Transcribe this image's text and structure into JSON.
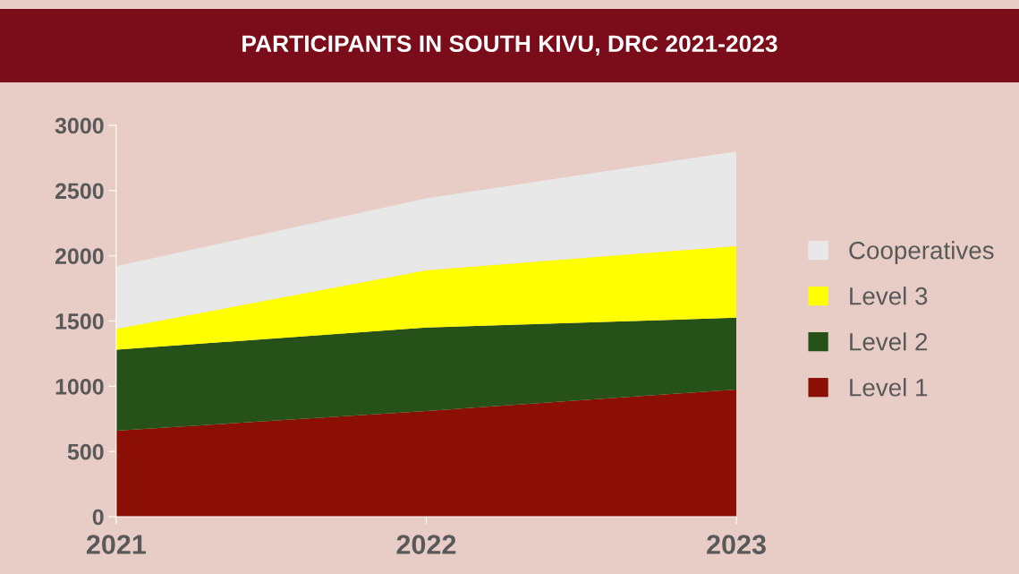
{
  "chart_data": {
    "type": "area",
    "title": "PARTICIPANTS IN SOUTH KIVU, DRC 2021-2023",
    "stacked": true,
    "x": [
      2021,
      2022,
      2023
    ],
    "xlim": [
      2021,
      2023
    ],
    "xticks": [
      2021,
      2022,
      2023
    ],
    "ylim": [
      0,
      3000
    ],
    "yticks": [
      0,
      500,
      1000,
      1500,
      2000,
      2500,
      3000
    ],
    "grid": false,
    "legend": "right",
    "series": [
      {
        "name": "Level 1",
        "color": "#8b0f04",
        "values": [
          660,
          810,
          975
        ]
      },
      {
        "name": "Level 2",
        "color": "#265118",
        "values": [
          620,
          640,
          550
        ]
      },
      {
        "name": "Level 3",
        "color": "#ffff00",
        "values": [
          160,
          440,
          550
        ]
      },
      {
        "name": "Cooperatives",
        "color": "#e8e8e8",
        "values": [
          480,
          550,
          725
        ]
      }
    ]
  }
}
